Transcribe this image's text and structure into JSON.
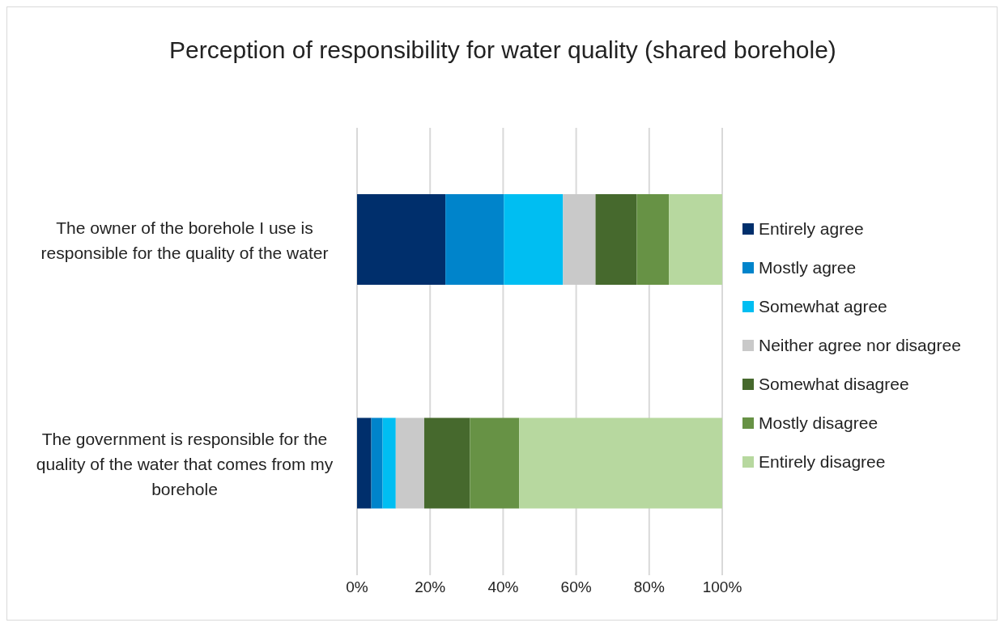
{
  "chart_data": {
    "type": "bar",
    "orientation": "horizontal",
    "stacked": true,
    "title": "Perception of responsibility for water quality (shared borehole)",
    "categories": [
      "The owner of the borehole I use is responsible for the quality of the water",
      "The government is responsible for the quality of the water that comes from my borehole"
    ],
    "series": [
      {
        "name": "Entirely agree",
        "color": "#002f6c",
        "values": [
          24.2,
          3.9
        ]
      },
      {
        "name": "Mostly agree",
        "color": "#0084cb",
        "values": [
          16.0,
          3.1
        ]
      },
      {
        "name": "Somewhat agree",
        "color": "#00bef2",
        "values": [
          16.2,
          3.6
        ]
      },
      {
        "name": "Neither agree nor disagree",
        "color": "#c9c9c9",
        "values": [
          8.9,
          7.8
        ]
      },
      {
        "name": "Somewhat disagree",
        "color": "#46692d",
        "values": [
          11.3,
          12.5
        ]
      },
      {
        "name": "Mostly disagree",
        "color": "#679245",
        "values": [
          8.8,
          13.5
        ]
      },
      {
        "name": "Entirely disagree",
        "color": "#b7d89f",
        "values": [
          14.6,
          55.6
        ]
      }
    ],
    "xlim": [
      0,
      100
    ],
    "xticks": [
      {
        "value": 0,
        "label": "0%"
      },
      {
        "value": 20,
        "label": "20%"
      },
      {
        "value": 40,
        "label": "40%"
      },
      {
        "value": 60,
        "label": "60%"
      },
      {
        "value": 80,
        "label": "80%"
      },
      {
        "value": 100,
        "label": "100%"
      }
    ],
    "grid": "x",
    "legend": "right"
  }
}
